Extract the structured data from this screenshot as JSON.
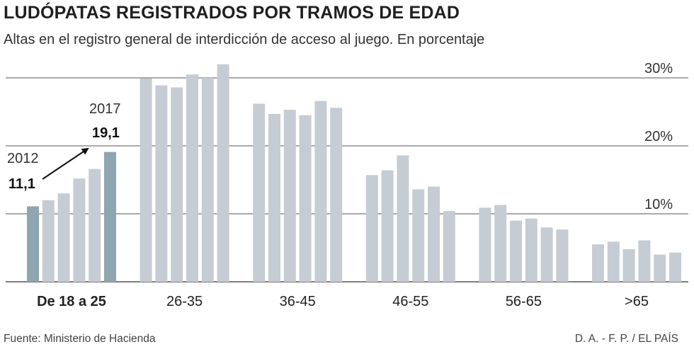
{
  "title": "LUDÓPATAS REGISTRADOS POR TRAMOS DE EDAD",
  "subtitle": "Altas en el registro general de interdicción de acceso al juego. En porcentaje",
  "footer": {
    "source": "Fuente: Ministerio de Hacienda",
    "credit": "D. A. - F. P. / EL PAÍS"
  },
  "colors": {
    "bar": "#c6ccd3",
    "highlight": "#8fa5b0",
    "text": "#222222",
    "grid": "#555555",
    "axis": "#333333"
  },
  "chart_data": {
    "type": "bar",
    "ylim": [
      0,
      30
    ],
    "yticks": [
      {
        "value": 10,
        "label": "10%"
      },
      {
        "value": 20,
        "label": "20%"
      },
      {
        "value": 30,
        "label": "30%"
      }
    ],
    "groups": [
      {
        "label": "De 18 a 25",
        "bold": true,
        "values": [
          11.1,
          12.0,
          13.0,
          15.2,
          16.6,
          19.1
        ],
        "highlight": [
          0,
          5
        ]
      },
      {
        "label": "26-35",
        "values": [
          29.9,
          28.9,
          28.6,
          30.5,
          30.0,
          32.0
        ]
      },
      {
        "label": "36-45",
        "values": [
          26.2,
          24.7,
          25.3,
          24.5,
          26.6,
          25.6
        ]
      },
      {
        "label": "46-55",
        "values": [
          15.7,
          16.4,
          18.6,
          13.6,
          14.0,
          10.4
        ]
      },
      {
        "label": "56-65",
        "values": [
          10.9,
          11.3,
          9.0,
          9.3,
          8.0,
          7.7
        ]
      },
      {
        "label": ">65",
        "values": [
          5.5,
          5.9,
          4.8,
          6.1,
          4.0,
          4.3
        ]
      }
    ],
    "annotations": {
      "start": {
        "year": "2012",
        "value": "11,1"
      },
      "end": {
        "year": "2017",
        "value": "19,1"
      }
    }
  }
}
